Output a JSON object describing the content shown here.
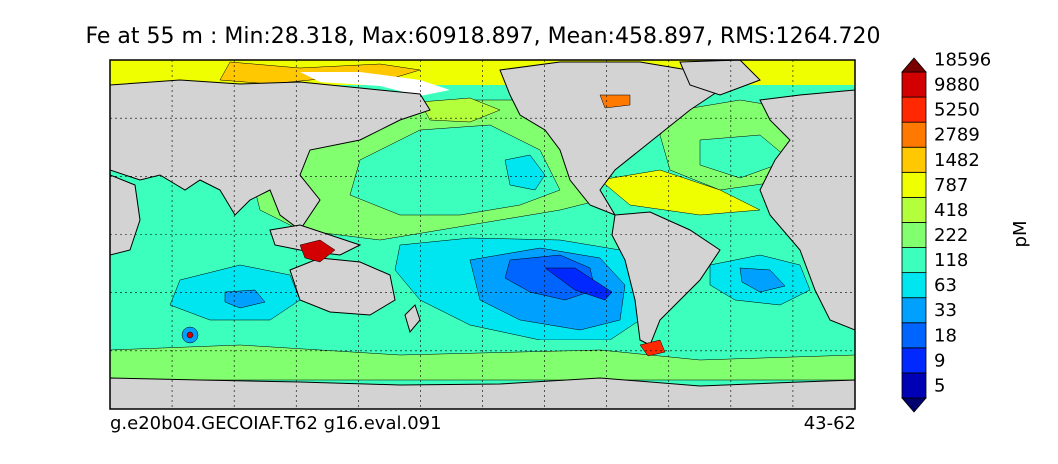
{
  "title": "Fe at 55 m : Min:28.318, Max:60918.897, Mean:458.897, RMS:1264.720",
  "footer_left": "g.e20b04.GECOIAF.T62 g16.eval.091",
  "footer_right": "43-62",
  "colorbar": {
    "unit_label": "pM",
    "levels": [
      "18596",
      "9880",
      "5250",
      "2789",
      "1482",
      "787",
      "418",
      "222",
      "118",
      "63",
      "33",
      "18",
      "9",
      "5"
    ],
    "colors": [
      "#00006e",
      "#0000b4",
      "#0028ff",
      "#0064ff",
      "#00a0ff",
      "#00e6f0",
      "#3cffbe",
      "#82ff6e",
      "#b4ff3c",
      "#f0ff00",
      "#ffc800",
      "#ff7800",
      "#ff2800",
      "#d20000",
      "#780000"
    ],
    "extend": "both"
  },
  "map": {
    "projection": "global lat-lon",
    "land_color": "#d3d3d3",
    "missing_color": "#ffffff",
    "grid": true
  }
}
